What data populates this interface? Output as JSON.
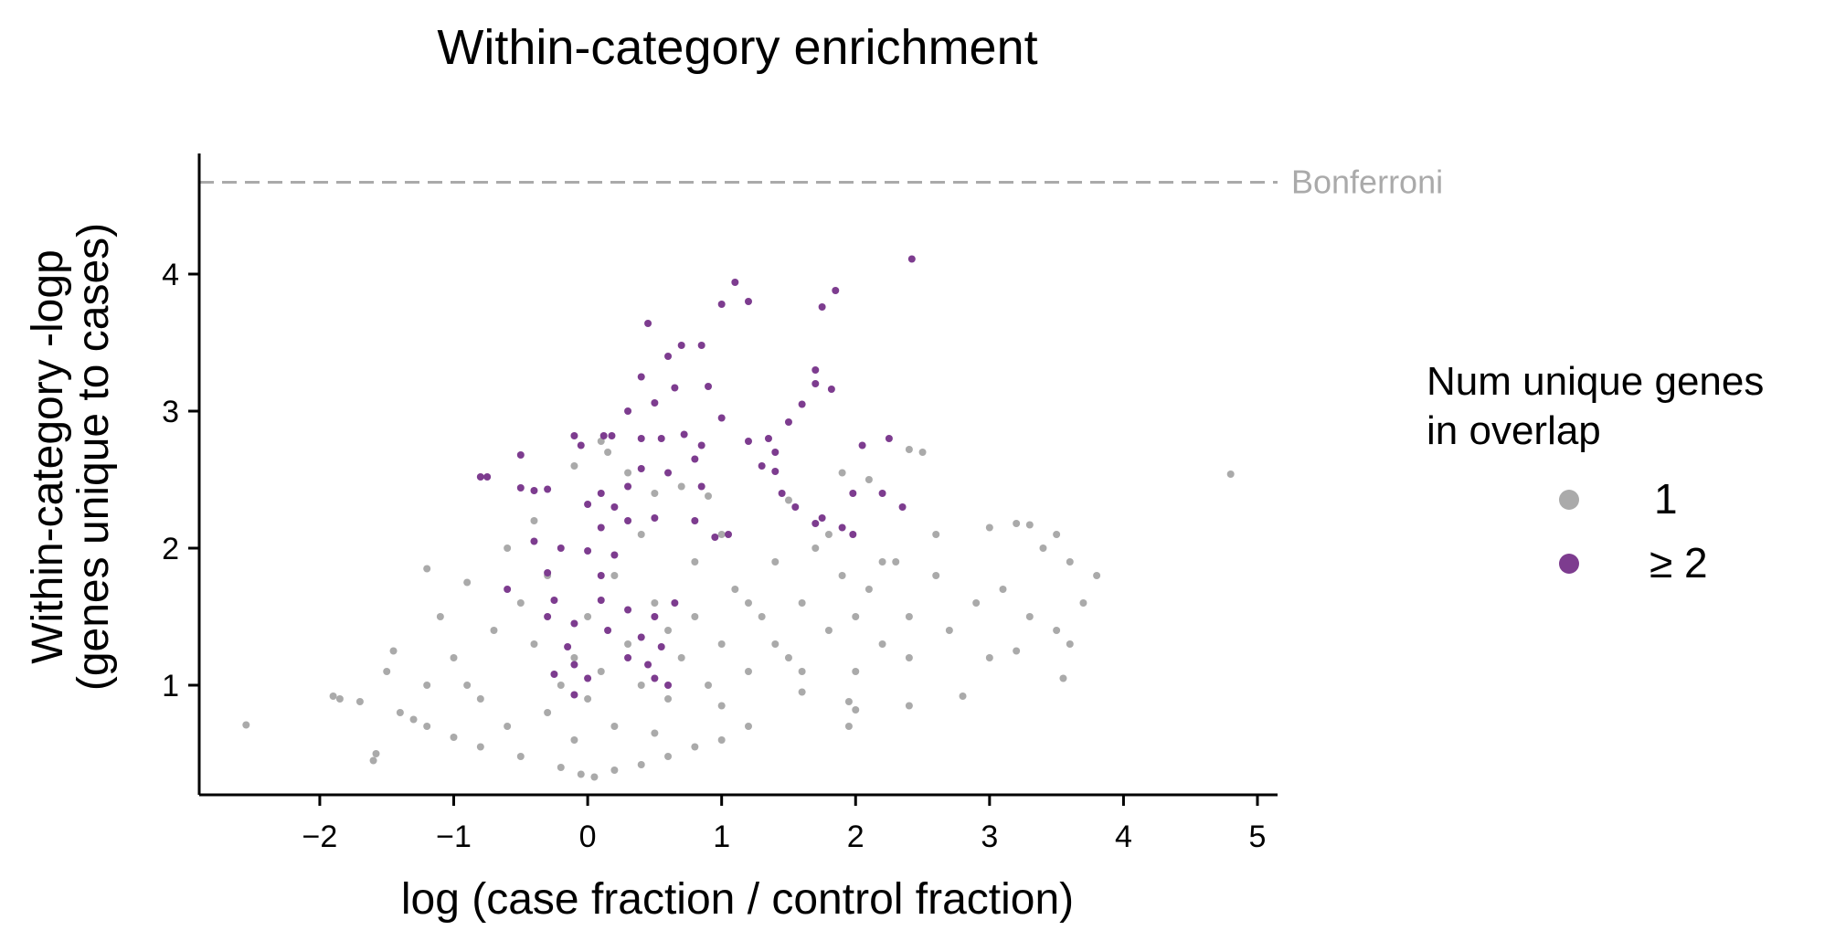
{
  "chart_data": {
    "type": "scatter",
    "title": "Within-category enrichment",
    "xlabel": "log (case fraction / control fraction)",
    "ylabel": [
      "Within-category -logp",
      "(genes unique to cases)"
    ],
    "xlim": [
      -2.9,
      5.15
    ],
    "ylim": [
      0.2,
      4.88
    ],
    "xticks": [
      -2,
      -1,
      0,
      1,
      2,
      3,
      4,
      5
    ],
    "xtick_labels": [
      "−2",
      "−1",
      "0",
      "1",
      "2",
      "3",
      "4",
      "5"
    ],
    "yticks": [
      1,
      2,
      3,
      4
    ],
    "ytick_labels": [
      "1",
      "2",
      "3",
      "4"
    ],
    "reference_line": {
      "y": 4.67,
      "label": "Bonferroni",
      "style": "dashed",
      "color": "#aaaaaa"
    },
    "legend": {
      "title": [
        "Num unique genes",
        "in overlap"
      ],
      "placement": "right",
      "entries": [
        {
          "label": "1",
          "color": "#aaaaaa"
        },
        {
          "label": "≥ 2",
          "color": "#7d3c8f"
        }
      ]
    },
    "series": [
      {
        "name": "1",
        "color": "#aaaaaa",
        "points": [
          [
            -2.55,
            0.71
          ],
          [
            4.8,
            2.54
          ],
          [
            -1.9,
            0.92
          ],
          [
            -1.6,
            0.45
          ],
          [
            -1.58,
            0.5
          ],
          [
            -1.2,
            1.85
          ],
          [
            -1.5,
            1.1
          ],
          [
            -1.3,
            0.75
          ],
          [
            -1.1,
            1.5
          ],
          [
            -0.9,
            1.75
          ],
          [
            -0.6,
            2.0
          ],
          [
            -0.4,
            2.2
          ],
          [
            -0.1,
            2.6
          ],
          [
            0.1,
            2.78
          ],
          [
            0.15,
            2.7
          ],
          [
            0.3,
            2.55
          ],
          [
            0.5,
            2.4
          ],
          [
            0.7,
            2.45
          ],
          [
            0.9,
            2.38
          ],
          [
            1.5,
            2.35
          ],
          [
            1.9,
            2.55
          ],
          [
            2.1,
            2.5
          ],
          [
            2.4,
            2.72
          ],
          [
            2.5,
            2.7
          ],
          [
            2.6,
            2.1
          ],
          [
            3.0,
            2.15
          ],
          [
            3.2,
            2.18
          ],
          [
            3.3,
            2.17
          ],
          [
            3.5,
            2.1
          ],
          [
            3.4,
            2.0
          ],
          [
            3.6,
            1.9
          ],
          [
            3.8,
            1.8
          ],
          [
            3.7,
            1.6
          ],
          [
            3.6,
            1.3
          ],
          [
            3.55,
            1.05
          ],
          [
            3.2,
            1.25
          ],
          [
            2.8,
            0.92
          ],
          [
            2.4,
            0.85
          ],
          [
            2.0,
            0.82
          ],
          [
            1.95,
            0.88
          ],
          [
            1.6,
            0.95
          ],
          [
            1.2,
            0.7
          ],
          [
            1.0,
            0.6
          ],
          [
            0.8,
            0.55
          ],
          [
            0.6,
            0.48
          ],
          [
            0.4,
            0.42
          ],
          [
            0.2,
            0.38
          ],
          [
            0.05,
            0.33
          ],
          [
            -0.05,
            0.35
          ],
          [
            -0.2,
            0.4
          ],
          [
            -0.5,
            0.48
          ],
          [
            -0.8,
            0.55
          ],
          [
            -1.0,
            0.62
          ],
          [
            -1.2,
            0.7
          ],
          [
            -1.4,
            0.8
          ],
          [
            -1.7,
            0.88
          ],
          [
            -1.85,
            0.9
          ],
          [
            -1.45,
            1.25
          ],
          [
            -1.0,
            1.2
          ],
          [
            -0.7,
            1.4
          ],
          [
            -0.5,
            1.6
          ],
          [
            -0.3,
            1.8
          ],
          [
            -0.3,
            0.8
          ],
          [
            -0.2,
            1.0
          ],
          [
            -0.1,
            1.2
          ],
          [
            0.0,
            0.9
          ],
          [
            0.1,
            1.1
          ],
          [
            0.2,
            0.7
          ],
          [
            0.3,
            1.3
          ],
          [
            0.4,
            1.0
          ],
          [
            0.5,
            1.6
          ],
          [
            0.6,
            0.9
          ],
          [
            0.7,
            1.2
          ],
          [
            0.8,
            1.5
          ],
          [
            0.9,
            1.0
          ],
          [
            1.0,
            1.3
          ],
          [
            1.1,
            1.7
          ],
          [
            1.2,
            1.1
          ],
          [
            1.3,
            1.5
          ],
          [
            1.4,
            1.9
          ],
          [
            1.5,
            1.2
          ],
          [
            1.6,
            1.6
          ],
          [
            1.7,
            2.0
          ],
          [
            1.8,
            1.4
          ],
          [
            1.9,
            1.8
          ],
          [
            2.0,
            1.5
          ],
          [
            2.1,
            1.7
          ],
          [
            2.2,
            1.3
          ],
          [
            2.3,
            1.9
          ],
          [
            2.4,
            1.5
          ],
          [
            2.6,
            1.8
          ],
          [
            2.7,
            1.4
          ],
          [
            2.9,
            1.6
          ],
          [
            3.0,
            1.2
          ],
          [
            3.1,
            1.7
          ],
          [
            3.3,
            1.5
          ],
          [
            3.5,
            1.4
          ],
          [
            -0.9,
            1.0
          ],
          [
            -0.6,
            0.7
          ],
          [
            -0.4,
            1.3
          ],
          [
            0.0,
            1.5
          ],
          [
            0.2,
            1.8
          ],
          [
            0.4,
            2.1
          ],
          [
            0.6,
            1.4
          ],
          [
            0.8,
            1.9
          ],
          [
            1.0,
            2.1
          ],
          [
            1.2,
            1.6
          ],
          [
            1.4,
            1.3
          ],
          [
            1.6,
            1.1
          ],
          [
            1.8,
            2.1
          ],
          [
            2.0,
            1.1
          ],
          [
            2.2,
            1.9
          ],
          [
            2.4,
            1.2
          ],
          [
            1.95,
            0.7
          ],
          [
            1.0,
            0.85
          ],
          [
            0.5,
            0.65
          ],
          [
            -0.1,
            0.6
          ],
          [
            -0.8,
            0.9
          ],
          [
            -1.2,
            1.0
          ]
        ]
      },
      {
        "name": "≥ 2",
        "color": "#7d3c8f",
        "points": [
          [
            2.42,
            4.11
          ],
          [
            1.1,
            3.94
          ],
          [
            1.2,
            3.8
          ],
          [
            1.0,
            3.78
          ],
          [
            1.85,
            3.88
          ],
          [
            1.75,
            3.76
          ],
          [
            0.45,
            3.64
          ],
          [
            0.7,
            3.48
          ],
          [
            0.85,
            3.48
          ],
          [
            0.6,
            3.4
          ],
          [
            1.7,
            3.3
          ],
          [
            1.7,
            3.2
          ],
          [
            0.4,
            3.25
          ],
          [
            0.65,
            3.17
          ],
          [
            0.9,
            3.18
          ],
          [
            1.82,
            3.16
          ],
          [
            0.5,
            3.06
          ],
          [
            0.3,
            3.0
          ],
          [
            1.6,
            3.05
          ],
          [
            1.5,
            2.92
          ],
          [
            1.0,
            2.95
          ],
          [
            0.55,
            2.8
          ],
          [
            -0.1,
            2.82
          ],
          [
            -0.05,
            2.75
          ],
          [
            0.12,
            2.82
          ],
          [
            0.18,
            2.82
          ],
          [
            0.4,
            2.8
          ],
          [
            0.72,
            2.83
          ],
          [
            0.85,
            2.75
          ],
          [
            1.2,
            2.78
          ],
          [
            1.35,
            2.8
          ],
          [
            2.05,
            2.75
          ],
          [
            2.25,
            2.8
          ],
          [
            -0.5,
            2.68
          ],
          [
            0.8,
            2.65
          ],
          [
            1.4,
            2.7
          ],
          [
            -0.8,
            2.52
          ],
          [
            -0.75,
            2.52
          ],
          [
            0.4,
            2.58
          ],
          [
            0.6,
            2.55
          ],
          [
            1.3,
            2.6
          ],
          [
            1.4,
            2.56
          ],
          [
            -0.4,
            2.42
          ],
          [
            -0.3,
            2.43
          ],
          [
            0.1,
            2.4
          ],
          [
            0.3,
            2.45
          ],
          [
            0.85,
            2.45
          ],
          [
            1.45,
            2.4
          ],
          [
            1.98,
            2.4
          ],
          [
            2.2,
            2.4
          ],
          [
            -0.5,
            2.44
          ],
          [
            0.0,
            2.32
          ],
          [
            0.2,
            2.3
          ],
          [
            1.55,
            2.3
          ],
          [
            2.35,
            2.3
          ],
          [
            0.5,
            2.22
          ],
          [
            0.8,
            2.2
          ],
          [
            1.75,
            2.22
          ],
          [
            1.7,
            2.18
          ],
          [
            1.9,
            2.15
          ],
          [
            1.98,
            2.1
          ],
          [
            0.1,
            2.15
          ],
          [
            0.3,
            2.2
          ],
          [
            1.05,
            2.1
          ],
          [
            0.95,
            2.08
          ],
          [
            -0.4,
            2.05
          ],
          [
            -0.2,
            2.0
          ],
          [
            0.0,
            1.98
          ],
          [
            0.2,
            1.95
          ],
          [
            0.1,
            1.8
          ],
          [
            -0.3,
            1.82
          ],
          [
            -0.6,
            1.7
          ],
          [
            -0.25,
            1.62
          ],
          [
            0.1,
            1.62
          ],
          [
            0.3,
            1.55
          ],
          [
            0.5,
            1.5
          ],
          [
            0.65,
            1.6
          ],
          [
            -0.3,
            1.5
          ],
          [
            -0.1,
            1.45
          ],
          [
            0.15,
            1.4
          ],
          [
            0.4,
            1.35
          ],
          [
            0.55,
            1.28
          ],
          [
            -0.15,
            1.28
          ],
          [
            -0.1,
            1.15
          ],
          [
            0.3,
            1.2
          ],
          [
            0.45,
            1.15
          ],
          [
            0.0,
            1.05
          ],
          [
            -0.25,
            1.08
          ],
          [
            0.5,
            1.05
          ],
          [
            0.6,
            1.0
          ],
          [
            -0.1,
            0.93
          ]
        ]
      }
    ]
  }
}
